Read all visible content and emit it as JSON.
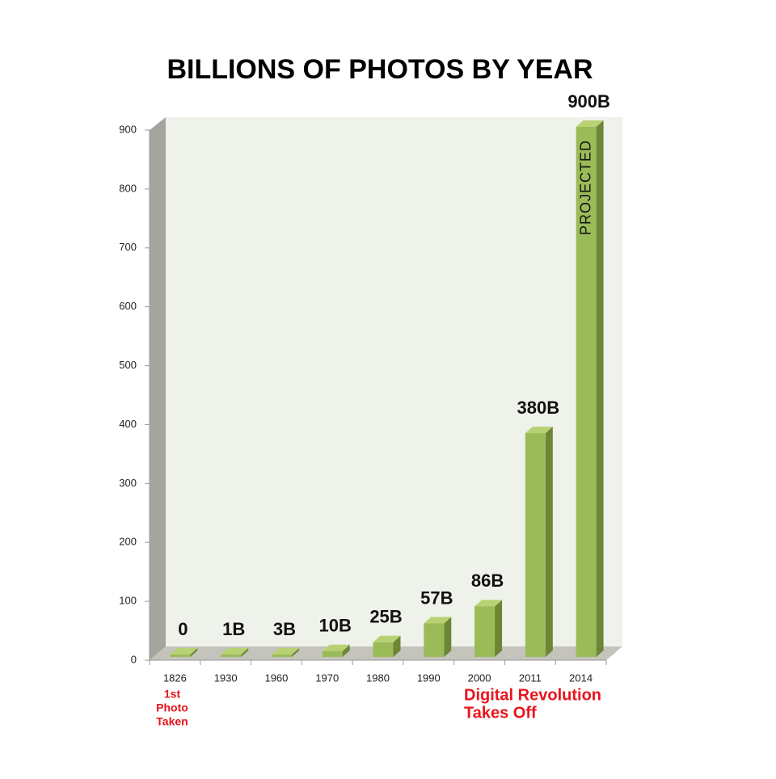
{
  "chart_data": {
    "type": "bar3d",
    "title": "BILLIONS OF PHOTOS BY YEAR",
    "categories": [
      "1826",
      "1930",
      "1960",
      "1970",
      "1980",
      "1990",
      "2000",
      "2011",
      "2014"
    ],
    "values": [
      0,
      1,
      3,
      10,
      25,
      57,
      86,
      380,
      900
    ],
    "value_labels": [
      "0",
      "1B",
      "3B",
      "10B",
      "25B",
      "57B",
      "86B",
      "380B",
      "900B"
    ],
    "color": "#9bbb59",
    "ylim": [
      0,
      900
    ],
    "yticks": [
      0,
      100,
      200,
      300,
      400,
      500,
      600,
      700,
      800,
      900
    ],
    "annotations": {
      "first_photo": [
        "1st",
        "Photo",
        "Taken"
      ],
      "digital": [
        "Digital Revolution",
        "Takes Off"
      ],
      "projected": "PROJECTED"
    }
  }
}
